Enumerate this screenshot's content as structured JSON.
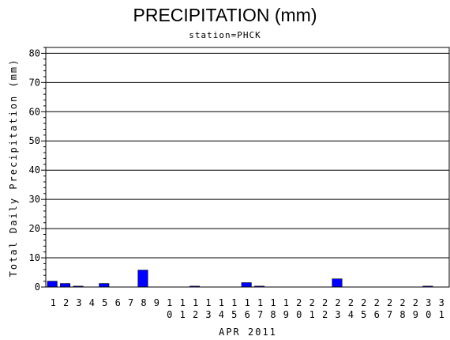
{
  "chart_data": {
    "type": "bar",
    "title": "PRECIPITATION (mm)",
    "subtitle": "station=PHCK",
    "xlabel": "APR 2011",
    "ylabel": "Total Daily Precipitation (mm)",
    "ylim": [
      0,
      82
    ],
    "yticks": [
      0,
      10,
      20,
      30,
      40,
      50,
      60,
      70,
      80
    ],
    "grid": true,
    "bar_color": "#0000ff",
    "categories": [
      "1",
      "2",
      "3",
      "4",
      "5",
      "6",
      "7",
      "8",
      "9",
      "10",
      "11",
      "12",
      "13",
      "14",
      "15",
      "16",
      "17",
      "18",
      "19",
      "20",
      "21",
      "22",
      "23",
      "24",
      "25",
      "26",
      "27",
      "28",
      "29",
      "30",
      "31"
    ],
    "values": [
      2.0,
      1.2,
      0.3,
      0,
      1.2,
      0,
      0,
      5.8,
      0,
      0,
      0,
      0.3,
      0,
      0,
      0,
      1.5,
      0.3,
      0,
      0,
      0,
      0,
      0,
      2.8,
      0,
      0,
      0,
      0,
      0,
      0,
      0.3,
      0
    ]
  }
}
